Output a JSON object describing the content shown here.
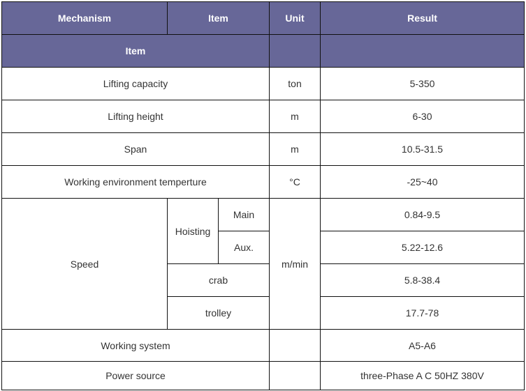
{
  "colors": {
    "header_bg": "#676798",
    "header_text": "#ffffff",
    "text": "#333333",
    "border": "#111111"
  },
  "header": {
    "mechanism": "Mechanism",
    "item": "Item",
    "unit": "Unit",
    "result": "Result",
    "subheader_item": "Item"
  },
  "rows": [
    {
      "item": "Lifting capacity",
      "unit": "ton",
      "result": "5-350"
    },
    {
      "item": "Lifting height",
      "unit": "m",
      "result": "6-30"
    },
    {
      "item": "Span",
      "unit": "m",
      "result": "10.5-31.5"
    },
    {
      "item": "Working environment temperture",
      "unit": "°C",
      "result": "-25~40"
    }
  ],
  "speed": {
    "label": "Speed",
    "unit": "m/min",
    "hoisting": "Hoisting",
    "main": "Main",
    "main_result": "0.84-9.5",
    "aux": "Aux.",
    "aux_result": "5.22-12.6",
    "crab": "crab",
    "crab_result": "5.8-38.4",
    "trolley": "trolley",
    "trolley_result": "17.7-78"
  },
  "tail": [
    {
      "item": "Working system",
      "unit": "",
      "result": "A5-A6"
    },
    {
      "item": "Power source",
      "unit": "",
      "result": "three-Phase A C 50HZ 380V"
    }
  ]
}
